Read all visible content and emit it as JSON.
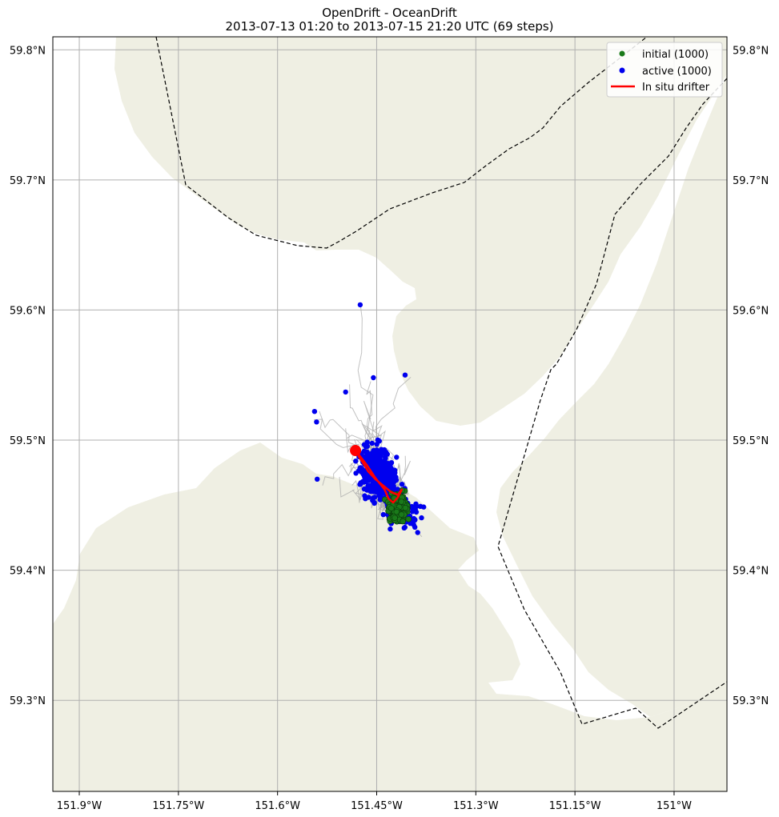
{
  "figure": {
    "title_line1": "OpenDrift - OceanDrift",
    "title_line2": "2013-07-13 01:20 to 2013-07-15 21:20 UTC (69 steps)"
  },
  "map": {
    "lon_range": [
      -151.94,
      -150.92
    ],
    "lat_range": [
      59.23,
      59.81
    ],
    "land_color": "#efefe3",
    "grid_color": "#b0b0b0",
    "x_ticks": [
      {
        "lon": -151.9,
        "label": "151.9°W"
      },
      {
        "lon": -151.75,
        "label": "151.75°W"
      },
      {
        "lon": -151.6,
        "label": "151.6°W"
      },
      {
        "lon": -151.45,
        "label": "151.45°W"
      },
      {
        "lon": -151.3,
        "label": "151.3°W"
      },
      {
        "lon": -151.15,
        "label": "151.15°W"
      },
      {
        "lon": -151.0,
        "label": "151°W"
      }
    ],
    "y_ticks": [
      {
        "lat": 59.3,
        "label": "59.3°N"
      },
      {
        "lat": 59.4,
        "label": "59.4°N"
      },
      {
        "lat": 59.5,
        "label": "59.5°N"
      },
      {
        "lat": 59.6,
        "label": "59.6°N"
      },
      {
        "lat": 59.7,
        "label": "59.7°N"
      },
      {
        "lat": 59.8,
        "label": "59.8°N"
      }
    ]
  },
  "chart_data": {
    "type": "scatter",
    "legend_position": "top-right",
    "legend": [
      {
        "label": "initial (1000)",
        "marker": "dot",
        "color": "#1a7a1a"
      },
      {
        "label": "active (1000)",
        "marker": "dot",
        "color": "#0000ee"
      },
      {
        "label": "In situ drifter",
        "marker": "line",
        "color": "#ff0000"
      }
    ],
    "initial_center": {
      "lon": -151.418,
      "lat": 59.448
    },
    "active_cluster": {
      "lon": -151.46,
      "lat": 59.485
    },
    "drifter_track": [
      [
        -151.482,
        59.492
      ],
      [
        -151.465,
        59.481
      ],
      [
        -151.452,
        59.471
      ],
      [
        -151.438,
        59.462
      ],
      [
        -151.432,
        59.455
      ],
      [
        -151.425,
        59.452
      ],
      [
        -151.418,
        59.456
      ],
      [
        -151.412,
        59.462
      ],
      [
        -151.418,
        59.458
      ],
      [
        -151.428,
        59.46
      ],
      [
        -151.44,
        59.465
      ],
      [
        -151.452,
        59.47
      ],
      [
        -151.463,
        59.476
      ],
      [
        -151.47,
        59.482
      ],
      [
        -151.478,
        59.488
      ]
    ],
    "drifter_end": {
      "lon": -151.482,
      "lat": 59.492
    },
    "outlier_points": [
      [
        -151.475,
        59.604
      ],
      [
        -151.407,
        59.55
      ],
      [
        -151.455,
        59.548
      ],
      [
        -151.497,
        59.537
      ],
      [
        -151.54,
        59.47
      ],
      [
        -151.544,
        59.522
      ],
      [
        -151.541,
        59.514
      ],
      [
        -151.388,
        59.429
      ]
    ]
  }
}
